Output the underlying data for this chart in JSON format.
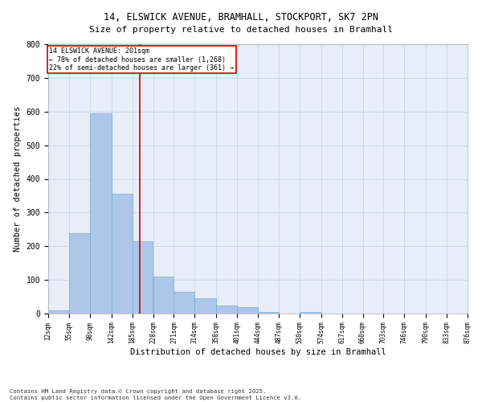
{
  "title_line1": "14, ELSWICK AVENUE, BRAMHALL, STOCKPORT, SK7 2PN",
  "title_line2": "Size of property relative to detached houses in Bramhall",
  "xlabel": "Distribution of detached houses by size in Bramhall",
  "ylabel": "Number of detached properties",
  "bin_edges": [
    12,
    55,
    98,
    142,
    185,
    228,
    271,
    314,
    358,
    401,
    444,
    487,
    530,
    574,
    617,
    660,
    703,
    746,
    790,
    833,
    876
  ],
  "bar_heights": [
    10,
    240,
    595,
    355,
    215,
    110,
    65,
    45,
    25,
    18,
    5,
    0,
    5,
    0,
    0,
    0,
    0,
    0,
    0,
    0
  ],
  "bar_color": "#aec6e8",
  "bar_edge_color": "#7aaacf",
  "grid_color": "#c8d4e8",
  "bg_color": "#e8eef8",
  "vline_x": 201,
  "vline_color": "#cc0000",
  "annotation_text": "14 ELSWICK AVENUE: 201sqm\n← 78% of detached houses are smaller (1,268)\n22% of semi-detached houses are larger (361) →",
  "annotation_box_color": "#cc0000",
  "ylim": [
    0,
    800
  ],
  "yticks": [
    0,
    100,
    200,
    300,
    400,
    500,
    600,
    700,
    800
  ],
  "footer_line1": "Contains HM Land Registry data © Crown copyright and database right 2025.",
  "footer_line2": "Contains public sector information licensed under the Open Government Licence v3.0."
}
